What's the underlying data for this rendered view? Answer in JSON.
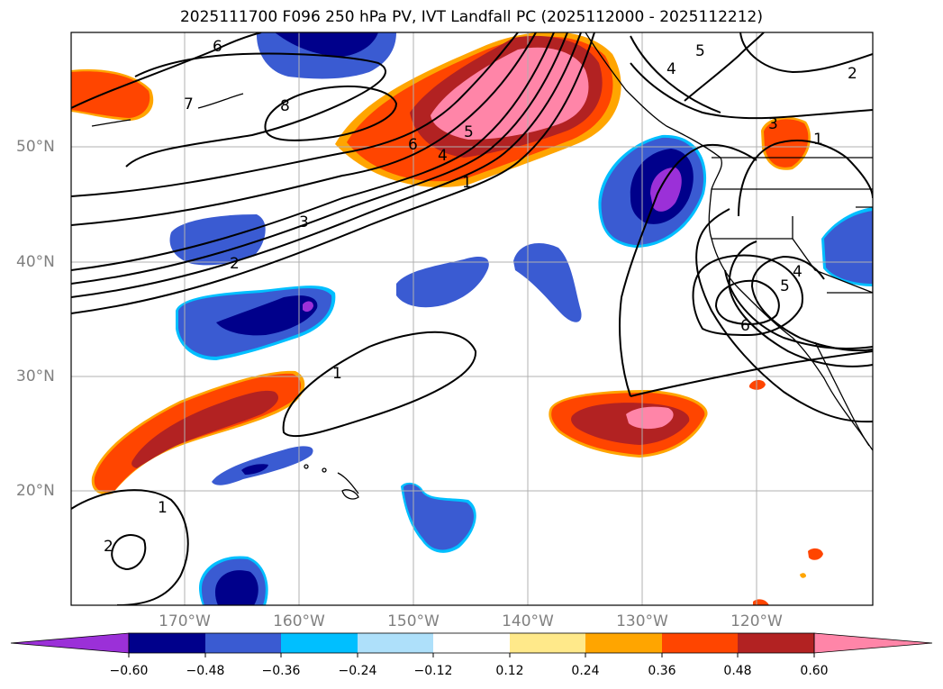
{
  "title": "2025111700 F096 250 hPa PV, IVT Landfall PC (2025112000 - 2025112212)",
  "lat_labels": [
    "50°N",
    "40°N",
    "30°N",
    "20°N"
  ],
  "lon_labels": [
    "170°W",
    "160°W",
    "150°W",
    "140°W",
    "130°W",
    "120°W"
  ],
  "contour_labels": [
    "6",
    "7",
    "8",
    "6",
    "5",
    "4",
    "1",
    "3",
    "2",
    "5",
    "4",
    "2",
    "3",
    "1",
    "4",
    "5",
    "6",
    "1",
    "1",
    "2"
  ],
  "colorbar": {
    "ticks": [
      "−0.60",
      "−0.48",
      "−0.36",
      "−0.24",
      "−0.12",
      "0.12",
      "0.24",
      "0.36",
      "0.48",
      "0.60"
    ],
    "colors": [
      "#9b30d8",
      "#00008b",
      "#3a5bd2",
      "#00bfff",
      "#aee0fa",
      "#ffffff",
      "#ffe98a",
      "#ffa500",
      "#ff4500",
      "#b22222",
      "#ff85a8"
    ]
  },
  "colors": {
    "gridline": "#b0b0b0",
    "coast": "#000000",
    "tick_text": "#808080"
  }
}
